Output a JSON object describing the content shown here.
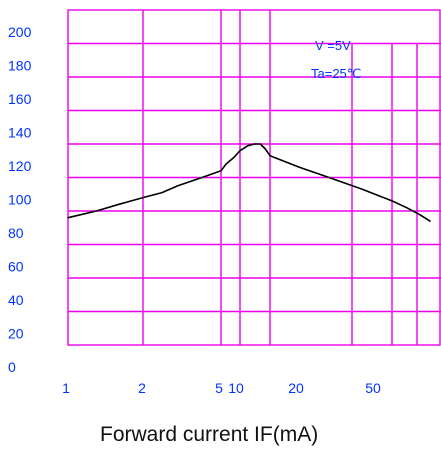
{
  "chart_data": {
    "type": "line",
    "title": "",
    "xlabel": "Forward current IF(mA)",
    "ylabel": "",
    "x_scale": "log",
    "x_ticks": [
      "1",
      "2",
      "5",
      "10",
      "20",
      "50"
    ],
    "y_ticks": [
      "0",
      "20",
      "40",
      "60",
      "80",
      "100",
      "120",
      "140",
      "160",
      "180",
      "200"
    ],
    "ylim": [
      0,
      200
    ],
    "grid": true,
    "annotations": [
      "V =5V",
      "Ta=25℃"
    ],
    "series": [
      {
        "x": [
          1,
          1.3,
          1.6,
          2,
          2.5,
          3,
          4,
          5,
          6,
          8,
          10,
          12,
          14,
          16,
          18,
          20,
          25,
          30,
          40,
          50,
          60,
          70,
          80
        ],
        "y": [
          76,
          80,
          84,
          88,
          91,
          95,
          100,
          104,
          108,
          112,
          116,
          119,
          120,
          120,
          117,
          113,
          106,
          101,
          93,
          86,
          82,
          78,
          74
        ]
      }
    ],
    "colors": {
      "grid": "#ee00ee",
      "line": "#000000",
      "tick_text": "#0033ff",
      "axis_label": "#111111"
    }
  }
}
